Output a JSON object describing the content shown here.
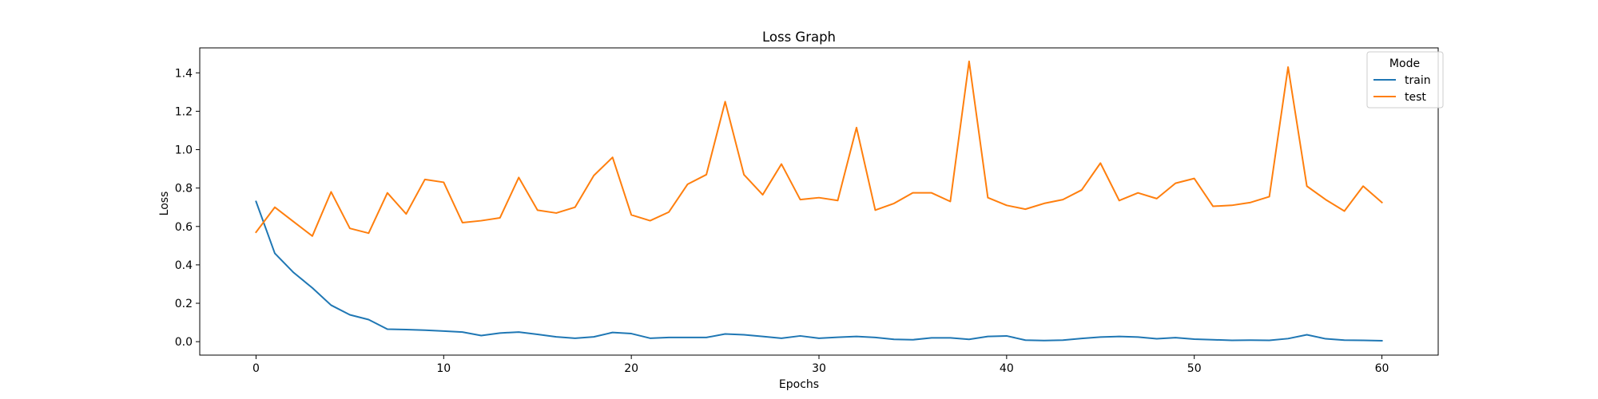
{
  "chart_data": {
    "type": "line",
    "title": "Loss Graph",
    "xlabel": "Epochs",
    "ylabel": "Loss",
    "xlim": [
      -3,
      63
    ],
    "ylim": [
      -0.07,
      1.53
    ],
    "xticks": [
      0,
      10,
      20,
      30,
      40,
      50,
      60
    ],
    "yticks": [
      0.0,
      0.2,
      0.4,
      0.6,
      0.8,
      1.0,
      1.2,
      1.4
    ],
    "grid": false,
    "legend": {
      "title": "Mode",
      "position": "top-right"
    },
    "x": [
      0,
      1,
      2,
      3,
      4,
      5,
      6,
      7,
      8,
      9,
      10,
      11,
      12,
      13,
      14,
      15,
      16,
      17,
      18,
      19,
      20,
      21,
      22,
      23,
      24,
      25,
      26,
      27,
      28,
      29,
      30,
      31,
      32,
      33,
      34,
      35,
      36,
      37,
      38,
      39,
      40,
      41,
      42,
      43,
      44,
      45,
      46,
      47,
      48,
      49,
      50,
      51,
      52,
      53,
      54,
      55,
      56,
      57,
      58,
      59,
      60
    ],
    "series": [
      {
        "name": "train",
        "color": "#1f77b4",
        "values": [
          0.73,
          0.46,
          0.36,
          0.28,
          0.19,
          0.14,
          0.115,
          0.065,
          0.063,
          0.06,
          0.055,
          0.05,
          0.032,
          0.045,
          0.05,
          0.038,
          0.025,
          0.018,
          0.025,
          0.048,
          0.042,
          0.018,
          0.022,
          0.022,
          0.022,
          0.04,
          0.036,
          0.027,
          0.018,
          0.03,
          0.018,
          0.023,
          0.027,
          0.022,
          0.012,
          0.01,
          0.02,
          0.02,
          0.012,
          0.027,
          0.03,
          0.008,
          0.006,
          0.008,
          0.017,
          0.024,
          0.027,
          0.024,
          0.015,
          0.021,
          0.013,
          0.01,
          0.007,
          0.008,
          0.007,
          0.016,
          0.036,
          0.015,
          0.008,
          0.007,
          0.005
        ]
      },
      {
        "name": "test",
        "color": "#ff7f0e",
        "values": [
          0.57,
          0.7,
          0.625,
          0.55,
          0.78,
          0.59,
          0.565,
          0.775,
          0.665,
          0.845,
          0.83,
          0.62,
          0.63,
          0.645,
          0.855,
          0.685,
          0.67,
          0.7,
          0.865,
          0.96,
          0.66,
          0.63,
          0.675,
          0.82,
          0.87,
          1.25,
          0.87,
          0.765,
          0.925,
          0.74,
          0.75,
          0.735,
          1.115,
          0.685,
          0.72,
          0.775,
          0.775,
          0.73,
          1.46,
          0.75,
          0.71,
          0.69,
          0.72,
          0.74,
          0.79,
          0.93,
          0.735,
          0.775,
          0.745,
          0.825,
          0.85,
          0.705,
          0.71,
          0.725,
          0.755,
          1.43,
          0.81,
          0.74,
          0.68,
          0.81,
          0.725
        ]
      }
    ]
  }
}
